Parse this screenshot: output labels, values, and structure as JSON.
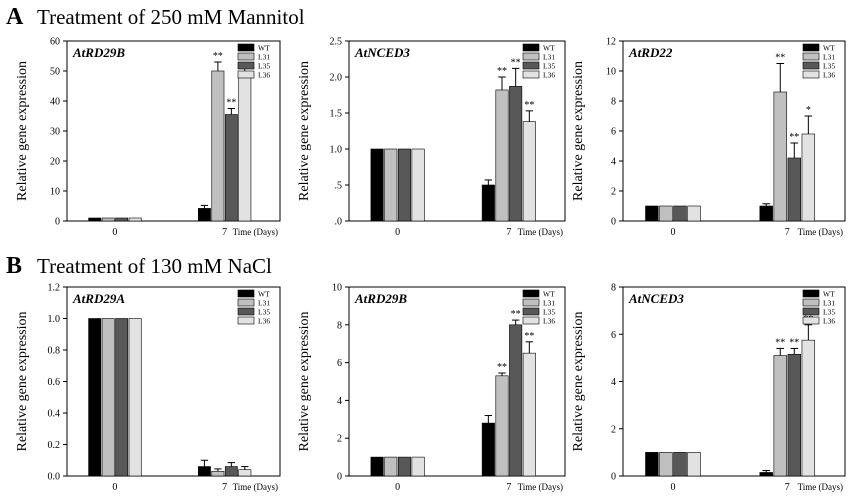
{
  "sections": [
    {
      "letter": "A",
      "title": "Treatment of 250 mM Mannitol"
    },
    {
      "letter": "B",
      "title": "Treatment of 130 mM NaCl"
    }
  ],
  "colors": {
    "WT": "#000000",
    "L31": "#c0c0c0",
    "L35": "#585858",
    "L36": "#e2e2e2"
  },
  "chart_data": [
    {
      "type": "bar",
      "title": "AtRD29B",
      "ylabel": "Relative gene expression",
      "xlabel": "Time (Days)",
      "categories": [
        "0",
        "7"
      ],
      "ylim": [
        0,
        60
      ],
      "yticks": [
        0,
        10,
        20,
        30,
        40,
        50,
        60
      ],
      "tick_labels": [
        "0",
        "10",
        "20",
        "30",
        "40",
        "50",
        "60"
      ],
      "series": [
        {
          "name": "WT",
          "values": [
            1.0,
            4.2
          ],
          "errors": [
            0,
            1.0
          ],
          "sig": [
            "",
            ""
          ]
        },
        {
          "name": "L31",
          "values": [
            1.0,
            50.0
          ],
          "errors": [
            0,
            3.0
          ],
          "sig": [
            "",
            "**"
          ]
        },
        {
          "name": "L35",
          "values": [
            1.0,
            35.5
          ],
          "errors": [
            0,
            2.0
          ],
          "sig": [
            "",
            "**"
          ]
        },
        {
          "name": "L36",
          "values": [
            1.0,
            48.5
          ],
          "errors": [
            0,
            4.0
          ],
          "sig": [
            "",
            "**"
          ]
        }
      ]
    },
    {
      "type": "bar",
      "title": "AtNCED3",
      "ylabel": "Relative gene expression",
      "xlabel": "Time (Days)",
      "categories": [
        "0",
        "7"
      ],
      "ylim": [
        0,
        2.5
      ],
      "yticks": [
        0,
        0.5,
        1.0,
        1.5,
        2.0,
        2.5
      ],
      "tick_labels": [
        ".0",
        ".5",
        "1.0",
        "1.5",
        "2.0",
        "2.5"
      ],
      "series": [
        {
          "name": "WT",
          "values": [
            1.0,
            0.5
          ],
          "errors": [
            0,
            0.07
          ],
          "sig": [
            "",
            ""
          ]
        },
        {
          "name": "L31",
          "values": [
            1.0,
            1.82
          ],
          "errors": [
            0,
            0.18
          ],
          "sig": [
            "",
            "**"
          ]
        },
        {
          "name": "L35",
          "values": [
            1.0,
            1.87
          ],
          "errors": [
            0,
            0.25
          ],
          "sig": [
            "",
            "**"
          ]
        },
        {
          "name": "L36",
          "values": [
            1.0,
            1.38
          ],
          "errors": [
            0,
            0.15
          ],
          "sig": [
            "",
            "**"
          ]
        }
      ]
    },
    {
      "type": "bar",
      "title": "AtRD22",
      "ylabel": "Relative gene expression",
      "xlabel": "Time (Days)",
      "categories": [
        "0",
        "7"
      ],
      "ylim": [
        0,
        12
      ],
      "yticks": [
        0,
        2,
        4,
        6,
        8,
        10,
        12
      ],
      "tick_labels": [
        "0",
        "2",
        "4",
        "6",
        "8",
        "10",
        "12"
      ],
      "series": [
        {
          "name": "WT",
          "values": [
            1.0,
            1.0
          ],
          "errors": [
            0,
            0.15
          ],
          "sig": [
            "",
            ""
          ]
        },
        {
          "name": "L31",
          "values": [
            1.0,
            8.6
          ],
          "errors": [
            0,
            1.9
          ],
          "sig": [
            "",
            "**"
          ]
        },
        {
          "name": "L35",
          "values": [
            1.0,
            4.2
          ],
          "errors": [
            0,
            1.0
          ],
          "sig": [
            "",
            "**"
          ]
        },
        {
          "name": "L36",
          "values": [
            1.0,
            5.8
          ],
          "errors": [
            0,
            1.2
          ],
          "sig": [
            "",
            "*"
          ]
        }
      ]
    },
    {
      "type": "bar",
      "title": "AtRD29A",
      "ylabel": "Relative gene expression",
      "xlabel": "Time (Days)",
      "categories": [
        "0",
        "7"
      ],
      "ylim": [
        0,
        1.2
      ],
      "yticks": [
        0,
        0.2,
        0.4,
        0.6,
        0.8,
        1.0,
        1.2
      ],
      "tick_labels": [
        "0.0",
        "0.2",
        "0.4",
        "0.6",
        "0.8",
        "1.0",
        "1.2"
      ],
      "series": [
        {
          "name": "WT",
          "values": [
            1.0,
            0.06
          ],
          "errors": [
            0,
            0.04
          ],
          "sig": [
            "",
            ""
          ]
        },
        {
          "name": "L31",
          "values": [
            1.0,
            0.03
          ],
          "errors": [
            0,
            0.015
          ],
          "sig": [
            "",
            ""
          ]
        },
        {
          "name": "L35",
          "values": [
            1.0,
            0.06
          ],
          "errors": [
            0,
            0.025
          ],
          "sig": [
            "",
            ""
          ]
        },
        {
          "name": "L36",
          "values": [
            1.0,
            0.04
          ],
          "errors": [
            0,
            0.02
          ],
          "sig": [
            "",
            ""
          ]
        }
      ]
    },
    {
      "type": "bar",
      "title": "AtRD29B",
      "ylabel": "Relative gene expression",
      "xlabel": "Time (Days)",
      "categories": [
        "0",
        "7"
      ],
      "ylim": [
        0,
        10
      ],
      "yticks": [
        0,
        2,
        4,
        6,
        8,
        10
      ],
      "tick_labels": [
        "0",
        "2",
        "4",
        "6",
        "8",
        "10"
      ],
      "series": [
        {
          "name": "WT",
          "values": [
            1.0,
            2.8
          ],
          "errors": [
            0,
            0.4
          ],
          "sig": [
            "",
            ""
          ]
        },
        {
          "name": "L31",
          "values": [
            1.0,
            5.3
          ],
          "errors": [
            0,
            0.15
          ],
          "sig": [
            "",
            "**"
          ]
        },
        {
          "name": "L35",
          "values": [
            1.0,
            8.0
          ],
          "errors": [
            0,
            0.25
          ],
          "sig": [
            "",
            "**"
          ]
        },
        {
          "name": "L36",
          "values": [
            1.0,
            6.5
          ],
          "errors": [
            0,
            0.6
          ],
          "sig": [
            "",
            "**"
          ]
        }
      ]
    },
    {
      "type": "bar",
      "title": "AtNCED3",
      "ylabel": "Relative gene expression",
      "xlabel": "Time (Days)",
      "categories": [
        "0",
        "7"
      ],
      "ylim": [
        0,
        8
      ],
      "yticks": [
        0,
        2,
        4,
        6,
        8
      ],
      "tick_labels": [
        "0",
        "2",
        "4",
        "6",
        "8"
      ],
      "series": [
        {
          "name": "WT",
          "values": [
            1.0,
            0.15
          ],
          "errors": [
            0,
            0.08
          ],
          "sig": [
            "",
            ""
          ]
        },
        {
          "name": "L31",
          "values": [
            1.0,
            5.1
          ],
          "errors": [
            0,
            0.3
          ],
          "sig": [
            "",
            "**"
          ]
        },
        {
          "name": "L35",
          "values": [
            1.0,
            5.15
          ],
          "errors": [
            0,
            0.25
          ],
          "sig": [
            "",
            "**"
          ]
        },
        {
          "name": "L36",
          "values": [
            1.0,
            5.75
          ],
          "errors": [
            0,
            0.65
          ],
          "sig": [
            "",
            "**"
          ]
        }
      ]
    }
  ]
}
